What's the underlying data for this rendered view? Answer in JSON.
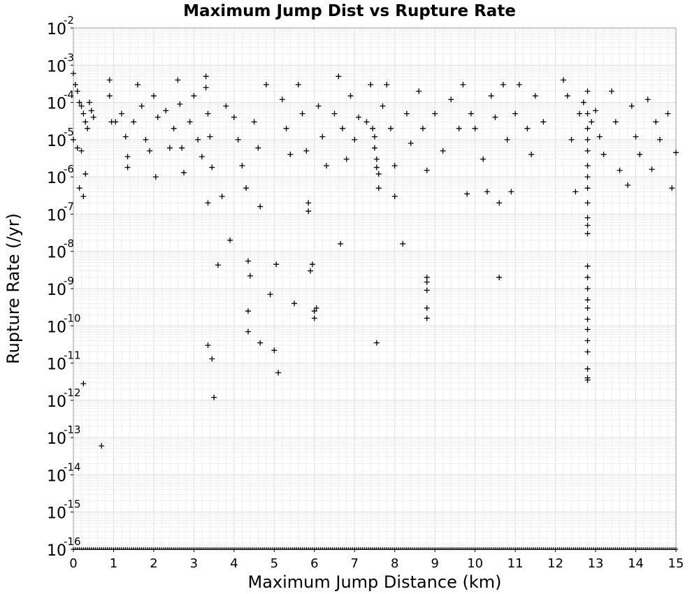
{
  "chart_data": {
    "type": "scatter",
    "title": "Maximum Jump Dist vs Rupture Rate",
    "xlabel": "Maximum Jump Distance (km)",
    "ylabel": "Rupture Rate (/yr)",
    "xlim": [
      0,
      15
    ],
    "ylim": [
      1e-16,
      0.01
    ],
    "yscale": "log",
    "grid": true,
    "marker": "+",
    "marker_color": "#000000",
    "x_ticks": [
      "0",
      "1",
      "2",
      "3",
      "4",
      "5",
      "6",
      "7",
      "8",
      "9",
      "10",
      "11",
      "12",
      "13",
      "14",
      "15"
    ],
    "y_ticks": [
      {
        "base": "10",
        "exp": "-16"
      },
      {
        "base": "10",
        "exp": "-15"
      },
      {
        "base": "10",
        "exp": "-14"
      },
      {
        "base": "10",
        "exp": "-13"
      },
      {
        "base": "10",
        "exp": "-12"
      },
      {
        "base": "10",
        "exp": "-11"
      },
      {
        "base": "10",
        "exp": "-10"
      },
      {
        "base": "10",
        "exp": "-9"
      },
      {
        "base": "10",
        "exp": "-8"
      },
      {
        "base": "10",
        "exp": "-7"
      },
      {
        "base": "10",
        "exp": "-6"
      },
      {
        "base": "10",
        "exp": "-5"
      },
      {
        "base": "10",
        "exp": "-4"
      },
      {
        "base": "10",
        "exp": "-3"
      },
      {
        "base": "10",
        "exp": "-2"
      }
    ],
    "points": [
      [
        0.0,
        0.0006
      ],
      [
        0.05,
        0.0003
      ],
      [
        0.1,
        0.0002
      ],
      [
        0.15,
        0.0001
      ],
      [
        0.2,
        8e-05
      ],
      [
        0.25,
        5e-05
      ],
      [
        0.3,
        3e-05
      ],
      [
        0.35,
        2e-05
      ],
      [
        0.4,
        0.0001
      ],
      [
        0.45,
        6e-05
      ],
      [
        0.5,
        4e-05
      ],
      [
        0.0,
        1e-05
      ],
      [
        0.1,
        6e-06
      ],
      [
        0.2,
        5e-06
      ],
      [
        0.3,
        1.2e-06
      ],
      [
        0.15,
        5e-07
      ],
      [
        0.25,
        3e-07
      ],
      [
        0.25,
        2.8e-12
      ],
      [
        0.7,
        6e-14
      ],
      [
        0.9,
        0.0004
      ],
      [
        0.9,
        0.00015
      ],
      [
        0.95,
        3e-05
      ],
      [
        1.05,
        3e-05
      ],
      [
        1.2,
        5e-05
      ],
      [
        1.3,
        1.2e-05
      ],
      [
        1.35,
        3.5e-06
      ],
      [
        1.35,
        1.8e-06
      ],
      [
        1.5,
        3e-05
      ],
      [
        1.6,
        0.0003
      ],
      [
        1.7,
        8e-05
      ],
      [
        1.8,
        1e-05
      ],
      [
        1.9,
        5e-06
      ],
      [
        2.0,
        0.00015
      ],
      [
        2.05,
        1e-06
      ],
      [
        2.1,
        4e-05
      ],
      [
        2.3,
        6e-05
      ],
      [
        2.4,
        6e-06
      ],
      [
        2.5,
        2e-05
      ],
      [
        2.6,
        0.0004
      ],
      [
        2.65,
        9e-05
      ],
      [
        2.7,
        6e-06
      ],
      [
        2.75,
        1.3e-06
      ],
      [
        2.9,
        3e-05
      ],
      [
        3.0,
        0.00015
      ],
      [
        3.1,
        1e-05
      ],
      [
        3.2,
        3.5e-06
      ],
      [
        3.3,
        0.0005
      ],
      [
        3.3,
        0.00025
      ],
      [
        3.35,
        5e-05
      ],
      [
        3.4,
        1.2e-05
      ],
      [
        3.45,
        1.8e-06
      ],
      [
        3.35,
        2e-07
      ],
      [
        3.6,
        4.3e-09
      ],
      [
        3.35,
        3e-11
      ],
      [
        3.45,
        1.3e-11
      ],
      [
        3.5,
        1.2e-12
      ],
      [
        3.7,
        3e-07
      ],
      [
        3.8,
        8e-05
      ],
      [
        3.9,
        2e-08
      ],
      [
        4.0,
        4e-05
      ],
      [
        4.1,
        1e-05
      ],
      [
        4.2,
        2e-06
      ],
      [
        4.3,
        5e-07
      ],
      [
        4.35,
        5.5e-09
      ],
      [
        4.4,
        2.2e-09
      ],
      [
        4.35,
        2.5e-10
      ],
      [
        4.35,
        7e-11
      ],
      [
        4.5,
        3e-05
      ],
      [
        4.6,
        6e-06
      ],
      [
        4.65,
        1.6e-07
      ],
      [
        4.65,
        3.5e-11
      ],
      [
        4.8,
        0.0003
      ],
      [
        4.9,
        7e-10
      ],
      [
        5.0,
        2.2e-11
      ],
      [
        5.05,
        4.5e-09
      ],
      [
        5.1,
        5.5e-12
      ],
      [
        5.2,
        0.00012
      ],
      [
        5.3,
        2e-05
      ],
      [
        5.4,
        4e-06
      ],
      [
        5.5,
        4e-10
      ],
      [
        5.6,
        0.0003
      ],
      [
        5.7,
        5e-05
      ],
      [
        5.8,
        5e-06
      ],
      [
        5.85,
        2e-07
      ],
      [
        5.85,
        1.2e-07
      ],
      [
        5.9,
        3e-09
      ],
      [
        5.95,
        4.5e-09
      ],
      [
        6.0,
        2.5e-10
      ],
      [
        6.0,
        1.6e-10
      ],
      [
        6.05,
        3e-10
      ],
      [
        6.1,
        8e-05
      ],
      [
        6.2,
        1.2e-05
      ],
      [
        6.3,
        2e-06
      ],
      [
        6.5,
        5e-05
      ],
      [
        6.6,
        0.0005
      ],
      [
        6.65,
        1.6e-08
      ],
      [
        6.7,
        2e-05
      ],
      [
        6.8,
        3e-06
      ],
      [
        6.9,
        0.00015
      ],
      [
        7.0,
        1e-05
      ],
      [
        7.1,
        4e-05
      ],
      [
        7.3,
        3e-05
      ],
      [
        7.4,
        0.0003
      ],
      [
        7.45,
        2e-05
      ],
      [
        7.5,
        1.2e-05
      ],
      [
        7.5,
        6e-06
      ],
      [
        7.55,
        3e-06
      ],
      [
        7.55,
        1.8e-06
      ],
      [
        7.6,
        1.2e-06
      ],
      [
        7.6,
        5e-07
      ],
      [
        7.55,
        3.5e-11
      ],
      [
        7.7,
        8e-05
      ],
      [
        7.8,
        0.0003
      ],
      [
        7.9,
        2e-05
      ],
      [
        8.0,
        2e-06
      ],
      [
        8.0,
        3e-07
      ],
      [
        8.2,
        1.6e-08
      ],
      [
        8.3,
        5e-05
      ],
      [
        8.4,
        8e-06
      ],
      [
        8.6,
        0.0002
      ],
      [
        8.7,
        2e-05
      ],
      [
        8.8,
        1.5e-06
      ],
      [
        8.8,
        2e-09
      ],
      [
        8.8,
        1.5e-09
      ],
      [
        8.8,
        9e-10
      ],
      [
        8.8,
        3e-10
      ],
      [
        8.8,
        1.6e-10
      ],
      [
        9.0,
        5e-05
      ],
      [
        9.2,
        5e-06
      ],
      [
        9.4,
        0.00012
      ],
      [
        9.6,
        2e-05
      ],
      [
        9.7,
        0.0003
      ],
      [
        9.8,
        3.5e-07
      ],
      [
        9.9,
        5e-05
      ],
      [
        10.0,
        2e-05
      ],
      [
        10.2,
        3e-06
      ],
      [
        10.3,
        4e-07
      ],
      [
        10.4,
        0.00015
      ],
      [
        10.5,
        4e-05
      ],
      [
        10.6,
        2e-07
      ],
      [
        10.6,
        2e-09
      ],
      [
        10.7,
        0.0003
      ],
      [
        10.8,
        1e-05
      ],
      [
        10.9,
        4e-07
      ],
      [
        11.0,
        5e-05
      ],
      [
        11.1,
        0.0003
      ],
      [
        11.3,
        2e-05
      ],
      [
        11.4,
        4e-06
      ],
      [
        11.5,
        0.00015
      ],
      [
        11.7,
        3e-05
      ],
      [
        12.2,
        0.0004
      ],
      [
        12.3,
        0.00015
      ],
      [
        12.4,
        1e-05
      ],
      [
        12.5,
        4e-07
      ],
      [
        12.6,
        5e-05
      ],
      [
        12.7,
        0.0001
      ],
      [
        12.8,
        0.0002
      ],
      [
        12.8,
        5e-05
      ],
      [
        12.8,
        2e-05
      ],
      [
        12.8,
        1e-05
      ],
      [
        12.8,
        5e-06
      ],
      [
        12.8,
        2e-06
      ],
      [
        12.8,
        1e-06
      ],
      [
        12.8,
        5e-07
      ],
      [
        12.8,
        2e-07
      ],
      [
        12.8,
        8e-08
      ],
      [
        12.8,
        5e-08
      ],
      [
        12.8,
        3e-08
      ],
      [
        12.8,
        4e-09
      ],
      [
        12.8,
        2e-09
      ],
      [
        12.8,
        1e-09
      ],
      [
        12.8,
        5e-10
      ],
      [
        12.8,
        3e-10
      ],
      [
        12.8,
        1.5e-10
      ],
      [
        12.8,
        8e-11
      ],
      [
        12.8,
        4e-11
      ],
      [
        12.8,
        2e-11
      ],
      [
        12.8,
        7e-12
      ],
      [
        12.8,
        4e-12
      ],
      [
        12.8,
        3.5e-12
      ],
      [
        12.9,
        3e-05
      ],
      [
        13.0,
        6e-05
      ],
      [
        13.1,
        1.2e-05
      ],
      [
        13.2,
        4e-06
      ],
      [
        13.4,
        0.0002
      ],
      [
        13.5,
        3e-05
      ],
      [
        13.6,
        1.5e-06
      ],
      [
        13.8,
        6e-07
      ],
      [
        13.9,
        8e-05
      ],
      [
        14.0,
        1.2e-05
      ],
      [
        14.1,
        4e-06
      ],
      [
        14.3,
        0.00012
      ],
      [
        14.4,
        1.6e-06
      ],
      [
        14.5,
        3e-05
      ],
      [
        14.6,
        1e-05
      ],
      [
        14.8,
        5e-05
      ],
      [
        14.9,
        5e-07
      ],
      [
        15.0,
        4.5e-06
      ]
    ],
    "floor_markers_at": 1e-16
  }
}
